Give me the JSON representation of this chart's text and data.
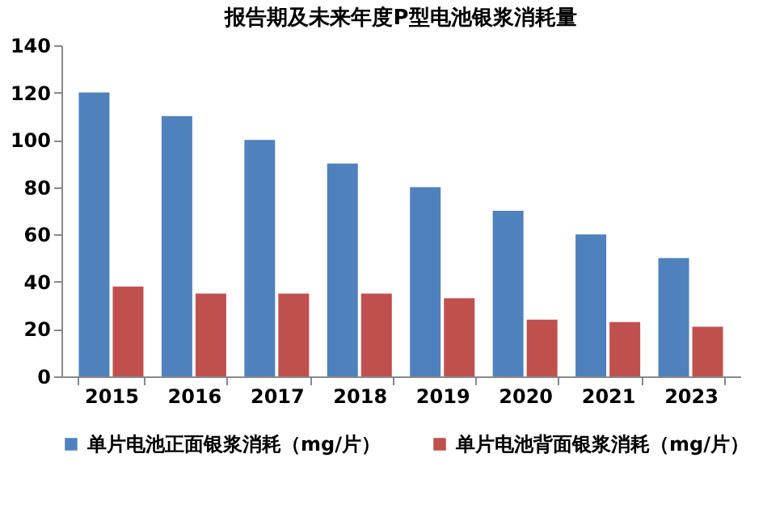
{
  "chart_data": {
    "type": "bar",
    "title": "报告期及未来年度P型电池银浆消耗量",
    "categories": [
      "2015",
      "2016",
      "2017",
      "2018",
      "2019",
      "2020",
      "2021",
      "2023"
    ],
    "series": [
      {
        "name": "单片电池正面银浆消耗（mg/片）",
        "color": "#4f81bd",
        "values": [
          120,
          110,
          100,
          90,
          80,
          70,
          60,
          50
        ]
      },
      {
        "name": "单片电池背面银浆消耗（mg/片）",
        "color": "#c0504d",
        "values": [
          38,
          35,
          35,
          35,
          33,
          24,
          23,
          21
        ]
      }
    ],
    "ylim": [
      0,
      140
    ],
    "yticks": [
      0,
      20,
      40,
      60,
      80,
      100,
      120,
      140
    ],
    "grid": false,
    "legend": "bottom"
  }
}
